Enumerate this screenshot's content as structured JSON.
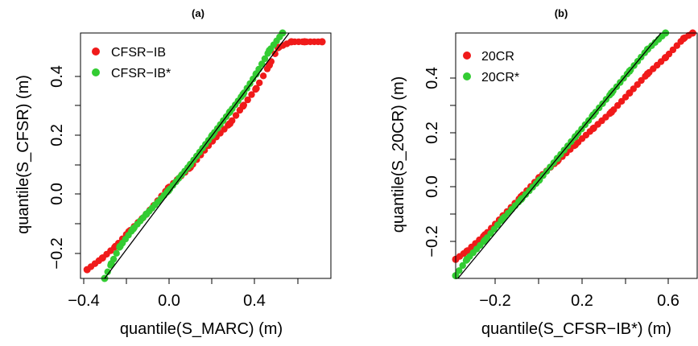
{
  "figure": {
    "panels": [
      {
        "title": "(a)",
        "xlabel": "quantile(S_MARC) (m)",
        "ylabel": "quantile(S_CFSR) (m)",
        "xticks": [
          "−0.4",
          "0.0",
          "0.4"
        ],
        "yticks": [
          "−0.2",
          "0.0",
          "0.2",
          "0.4"
        ],
        "legend": [
          "CFSR−IB",
          "CFSR−IB*"
        ]
      },
      {
        "title": "(b)",
        "xlabel": "quantile(S_CFSR−IB*) (m)",
        "ylabel": "quantile(S_20CR) (m)",
        "xticks": [
          "−0.2",
          "0.2",
          "0.6"
        ],
        "yticks": [
          "−0.2",
          "0.0",
          "0.2",
          "0.4"
        ],
        "legend": [
          "20CR",
          "20CR*"
        ]
      }
    ]
  },
  "colors": {
    "red": "#f01a1a",
    "green": "#33cc33",
    "line": "#000000"
  },
  "chart_data": [
    {
      "type": "scatter",
      "title": "(a)",
      "xlabel": "quantile(S_MARC) (m)",
      "ylabel": "quantile(S_CFSR) (m)",
      "xlim": [
        -0.4,
        0.74
      ],
      "ylim": [
        -0.29,
        0.55
      ],
      "reference_line": "y = x",
      "legend_position": "top-left",
      "series": [
        {
          "name": "CFSR−IB",
          "color": "red",
          "x": [
            -0.37,
            -0.3,
            -0.24,
            -0.18,
            -0.1,
            0.0,
            0.1,
            0.2,
            0.28,
            0.34,
            0.4,
            0.46,
            0.5,
            0.56,
            0.62,
            0.7
          ],
          "y": [
            -0.26,
            -0.22,
            -0.18,
            -0.13,
            -0.07,
            0.02,
            0.09,
            0.18,
            0.24,
            0.3,
            0.36,
            0.44,
            0.5,
            0.52,
            0.52,
            0.52
          ]
        },
        {
          "name": "CFSR−IB*",
          "color": "green",
          "x": [
            -0.29,
            -0.26,
            -0.22,
            -0.16,
            -0.1,
            0.0,
            0.1,
            0.2,
            0.28,
            0.34,
            0.4,
            0.46,
            0.52
          ],
          "y": [
            -0.29,
            -0.24,
            -0.18,
            -0.12,
            -0.07,
            0.01,
            0.1,
            0.2,
            0.28,
            0.34,
            0.41,
            0.49,
            0.55
          ]
        }
      ]
    },
    {
      "type": "scatter",
      "title": "(b)",
      "xlabel": "quantile(S_CFSR−IB*) (m)",
      "ylabel": "quantile(S_20CR) (m)",
      "xlim": [
        -0.35,
        0.72
      ],
      "ylim": [
        -0.34,
        0.56
      ],
      "reference_line": "y = x",
      "legend_position": "top-left",
      "series": [
        {
          "name": "20CR",
          "color": "red",
          "x": [
            -0.35,
            -0.3,
            -0.22,
            -0.14,
            -0.06,
            0.02,
            0.1,
            0.18,
            0.26,
            0.34,
            0.42,
            0.5,
            0.58,
            0.66,
            0.7
          ],
          "y": [
            -0.27,
            -0.24,
            -0.18,
            -0.11,
            -0.04,
            0.03,
            0.09,
            0.15,
            0.21,
            0.27,
            0.34,
            0.41,
            0.47,
            0.54,
            0.56
          ]
        },
        {
          "name": "20CR*",
          "color": "green",
          "x": [
            -0.35,
            -0.3,
            -0.22,
            -0.14,
            -0.06,
            0.02,
            0.1,
            0.18,
            0.26,
            0.34,
            0.42,
            0.5,
            0.58
          ],
          "y": [
            -0.33,
            -0.27,
            -0.2,
            -0.12,
            -0.05,
            0.02,
            0.1,
            0.18,
            0.26,
            0.34,
            0.42,
            0.5,
            0.56
          ]
        }
      ]
    }
  ]
}
